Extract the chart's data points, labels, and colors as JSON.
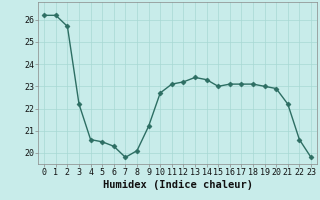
{
  "xlabel": "Humidex (Indice chaleur)",
  "x": [
    0,
    1,
    2,
    3,
    4,
    5,
    6,
    7,
    8,
    9,
    10,
    11,
    12,
    13,
    14,
    15,
    16,
    17,
    18,
    19,
    20,
    21,
    22,
    23
  ],
  "y": [
    26.2,
    26.2,
    25.7,
    22.2,
    20.6,
    20.5,
    20.3,
    19.8,
    20.1,
    21.2,
    22.7,
    23.1,
    23.2,
    23.4,
    23.3,
    23.0,
    23.1,
    23.1,
    23.1,
    23.0,
    22.9,
    22.2,
    20.6,
    19.8
  ],
  "line_color": "#2d6e63",
  "marker": "D",
  "marker_size": 2.5,
  "bg_color": "#c8ecea",
  "grid_color": "#a8d8d4",
  "ylim": [
    19.5,
    26.8
  ],
  "yticks": [
    20,
    21,
    22,
    23,
    24,
    25,
    26
  ],
  "xticks": [
    0,
    1,
    2,
    3,
    4,
    5,
    6,
    7,
    8,
    9,
    10,
    11,
    12,
    13,
    14,
    15,
    16,
    17,
    18,
    19,
    20,
    21,
    22,
    23
  ],
  "tick_fontsize": 6,
  "xlabel_fontsize": 7.5,
  "linewidth": 1.0,
  "spine_color": "#888888"
}
